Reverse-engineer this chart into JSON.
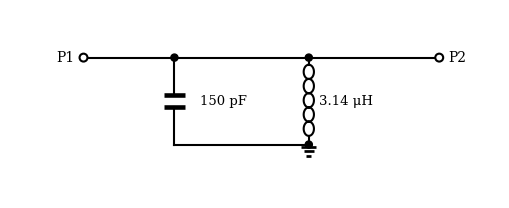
{
  "background": "#ffffff",
  "line_color": "#000000",
  "line_width": 1.5,
  "p1_label": "P1",
  "p2_label": "P2",
  "cap_label": "150 pF",
  "ind_label": "3.14 μH",
  "fig_width": 5.1,
  "fig_height": 2.08,
  "dpi": 100,
  "inductor_loops": 5
}
